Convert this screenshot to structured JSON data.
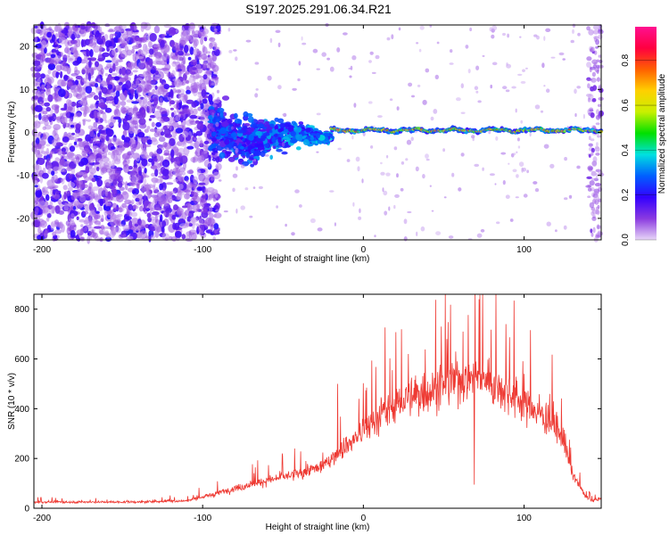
{
  "title": "S197.2025.291.06.34.R21",
  "chart_data": [
    {
      "type": "heatmap",
      "name": "spectrogram",
      "xlabel": "Height of straight line (km)",
      "ylabel": "Frequency (Hz)",
      "xlim": [
        -205,
        148
      ],
      "ylim": [
        -25,
        25
      ],
      "xticks": [
        -200,
        -100,
        0,
        100
      ],
      "xtick_labels": [
        "-200",
        "-100",
        "0",
        "100"
      ],
      "yticks": [
        20,
        10,
        0,
        -10,
        -20
      ],
      "ytick_labels": [
        "20",
        "10",
        "0",
        "-10",
        "-20"
      ],
      "colorbar": {
        "label": "Normalized spectral amplitude",
        "range": [
          0,
          0.95
        ],
        "ticks": [
          0.0,
          0.2,
          0.4,
          0.6,
          0.8
        ],
        "tick_labels": [
          "0.0",
          "0.2",
          "0.4",
          "0.6",
          "0.8"
        ],
        "colors": [
          "#e8d6f7",
          "#8a3ae0",
          "#3300ff",
          "#0060ff",
          "#00e0e0",
          "#00e000",
          "#c8f000",
          "#ffd000",
          "#ff6000",
          "#ff0040",
          "#ff1090"
        ]
      },
      "features": {
        "noise_band_x": [
          -205,
          -95
        ],
        "transition_x": [
          -95,
          -20
        ],
        "signal_line_x": [
          -20,
          148
        ],
        "signal_frequency_hz": 0.5,
        "peak_amplitude": 0.95
      }
    },
    {
      "type": "line",
      "name": "snr",
      "xlabel": "Height of straight line (km)",
      "ylabel": "SNR (10 * v/v)",
      "xlim": [
        -205,
        148
      ],
      "ylim": [
        0,
        860
      ],
      "xticks": [
        -200,
        -100,
        0,
        100
      ],
      "xtick_labels": [
        "-200",
        "-100",
        "0",
        "100"
      ],
      "yticks": [
        0,
        200,
        400,
        600,
        800
      ],
      "ytick_labels": [
        "0",
        "200",
        "400",
        "600",
        "800"
      ],
      "color": "#ee3a33",
      "envelope": {
        "x": [
          -205,
          -140,
          -110,
          -100,
          -80,
          -60,
          -40,
          -25,
          -15,
          -5,
          5,
          20,
          40,
          60,
          75,
          90,
          110,
          120,
          125,
          130,
          138,
          142,
          148
        ],
        "y": [
          25,
          25,
          30,
          45,
          80,
          110,
          140,
          170,
          230,
          280,
          340,
          420,
          470,
          520,
          520,
          470,
          380,
          320,
          260,
          140,
          50,
          30,
          40
        ]
      },
      "spikes": [
        {
          "x": -16,
          "y": 500
        },
        {
          "x": 28,
          "y": 620
        },
        {
          "x": 52,
          "y": 680
        },
        {
          "x": 62,
          "y": 710
        },
        {
          "x": 69,
          "y": 860
        },
        {
          "x": 72,
          "y": 840
        },
        {
          "x": 69,
          "y": 95
        },
        {
          "x": 100,
          "y": 540
        }
      ]
    }
  ]
}
